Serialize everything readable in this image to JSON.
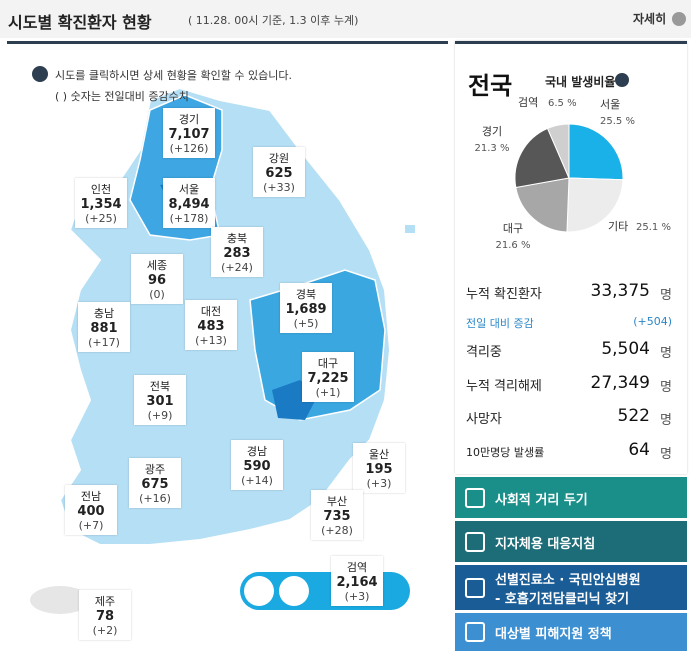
{
  "header": {
    "title": "시도별 확진환자 현황",
    "subtitle": "( 11.28. 00시 기준, 1.3 이후 누계)",
    "button": "자세히"
  },
  "map": {
    "help": "시도를 클릭하시면 상세 현황을 확인할 수 있습니다.",
    "note": "( ) 숫자는 전일대비 증감수치",
    "regions": [
      {
        "name": "경기",
        "count": "7,107",
        "change": "(+126)"
      },
      {
        "name": "강원",
        "count": "625",
        "change": "(+33)"
      },
      {
        "name": "인천",
        "count": "1,354",
        "change": "(+25)"
      },
      {
        "name": "서울",
        "count": "8,494",
        "change": "(+178)"
      },
      {
        "name": "충북",
        "count": "283",
        "change": "(+24)"
      },
      {
        "name": "세종",
        "count": "96",
        "change": "(0)"
      },
      {
        "name": "경북",
        "count": "1,689",
        "change": "(+5)"
      },
      {
        "name": "충남",
        "count": "881",
        "change": "(+17)"
      },
      {
        "name": "대전",
        "count": "483",
        "change": "(+13)"
      },
      {
        "name": "대구",
        "count": "7,225",
        "change": "(+1)"
      },
      {
        "name": "전북",
        "count": "301",
        "change": "(+9)"
      },
      {
        "name": "경남",
        "count": "590",
        "change": "(+14)"
      },
      {
        "name": "울산",
        "count": "195",
        "change": "(+3)"
      },
      {
        "name": "광주",
        "count": "675",
        "change": "(+16)"
      },
      {
        "name": "부산",
        "count": "735",
        "change": "(+28)"
      },
      {
        "name": "전남",
        "count": "400",
        "change": "(+7)"
      },
      {
        "name": "검역",
        "count": "2,164",
        "change": "(+3)"
      },
      {
        "name": "제주",
        "count": "78",
        "change": "(+2)"
      }
    ]
  },
  "summary": {
    "title": "전국",
    "ratio_title": "국내 발생비율",
    "stats": [
      {
        "label": "누적 확진환자",
        "value": "33,375",
        "unit": "명"
      },
      {
        "label": "전일 대비 증감",
        "value": "(+504)"
      },
      {
        "label": "격리중",
        "value": "5,504",
        "unit": "명"
      },
      {
        "label": "누적 격리해제",
        "value": "27,349",
        "unit": "명"
      },
      {
        "label": "사망자",
        "value": "522",
        "unit": "명"
      },
      {
        "label": "10만명당 발생률",
        "value": "64",
        "unit": "명"
      }
    ]
  },
  "pie": {
    "type": "pie",
    "categories": [
      "서울",
      "기타",
      "대구",
      "경기",
      "검역"
    ],
    "values": [
      25.5,
      25.1,
      21.6,
      21.3,
      6.5
    ],
    "value_labels": [
      "25.5 %",
      "25.1 %",
      "21.6 %",
      "21.3 %",
      "6.5 %"
    ],
    "colors": [
      "#1ab0e8",
      "#ececec",
      "#a7a7a7",
      "#575757",
      "#cfcfcf"
    ]
  },
  "links": [
    "사회적 거리 두기",
    "지자체용 대응지침",
    "선별진료소 · 국민안심병원",
    "- 호흡기전담클리닉 찾기",
    "대상별 피해지원 정책"
  ]
}
